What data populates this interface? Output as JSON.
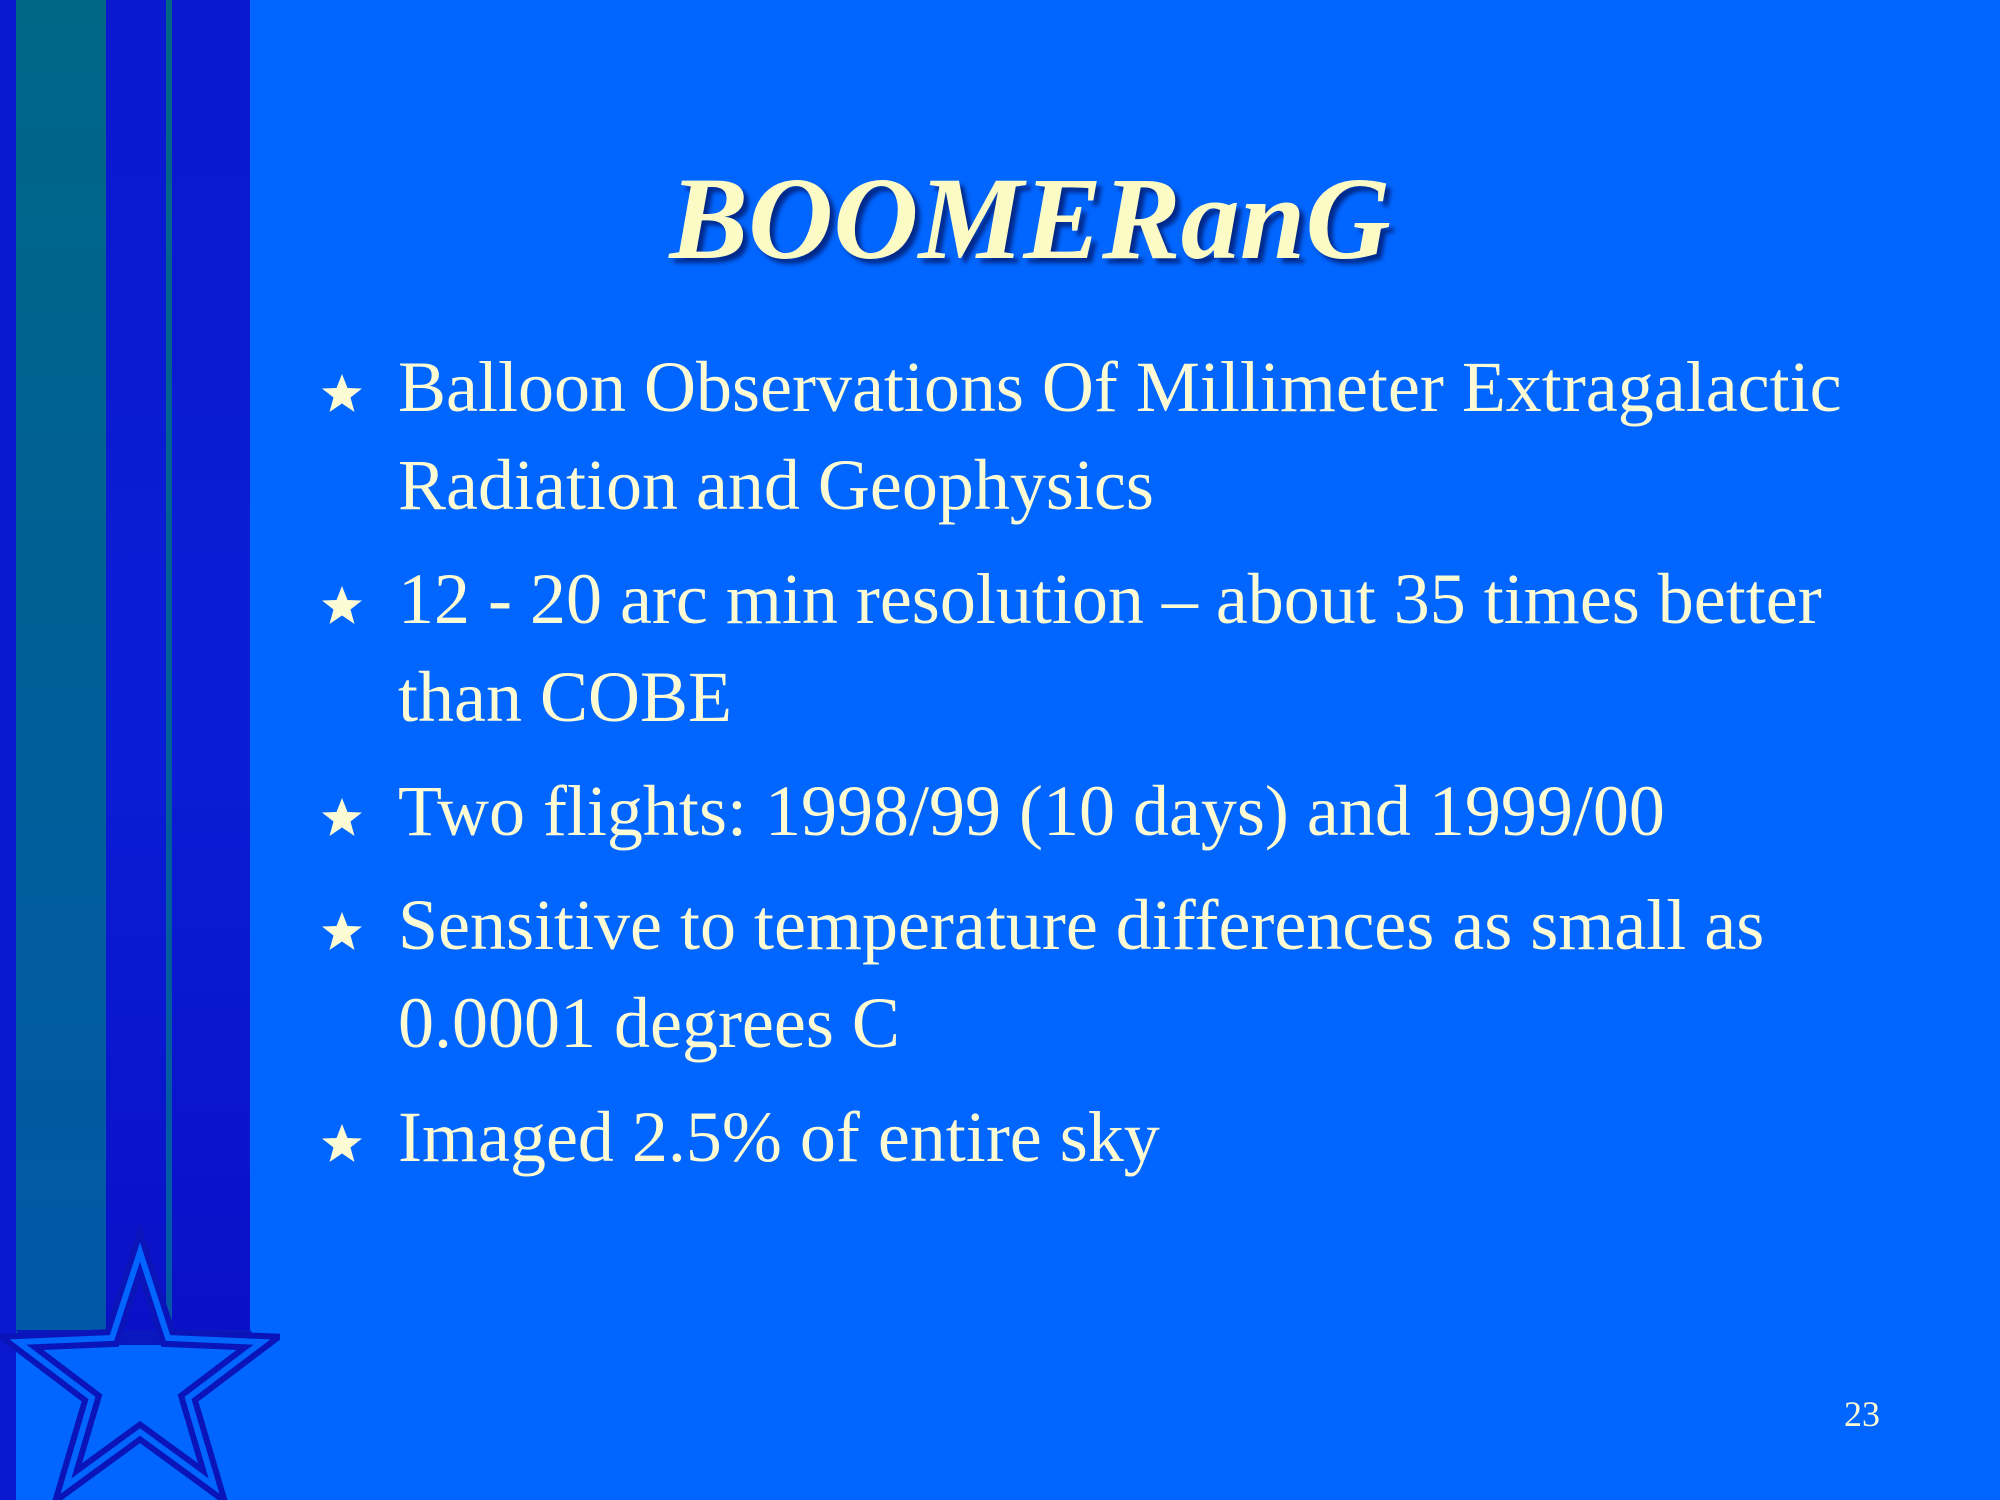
{
  "slide": {
    "title": "BOOMERanG",
    "bullets": [
      {
        "icon": "star-bullet-icon",
        "text": "Balloon Observations Of Millimeter Extragalactic Radiation and Geophysics"
      },
      {
        "icon": "star-bullet-icon",
        "text": "12 - 20 arc min resolution – about 35 times better than COBE"
      },
      {
        "icon": "star-bullet-icon",
        "text": "Two flights: 1998/99 (10 days) and 1999/00"
      },
      {
        "icon": "star-bullet-icon",
        "text": "Sensitive to temperature differences as small as 0.0001 degrees C"
      },
      {
        "icon": "star-bullet-icon",
        "text": "Imaged 2.5% of entire sky"
      }
    ],
    "page_number": "23"
  },
  "decoration": {
    "icon": "star-outline-icon",
    "colors": {
      "background": "#0066ff",
      "bar_dark": "#0a18d0",
      "bar_teal": "#00609a",
      "text": "#fdfbd4",
      "title": "#fdfbc5"
    }
  }
}
